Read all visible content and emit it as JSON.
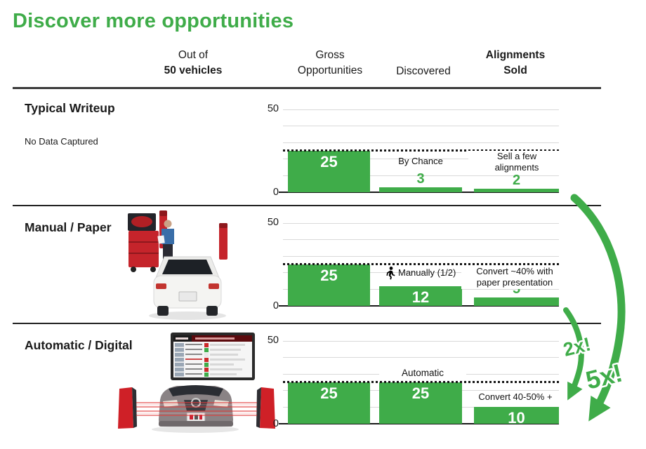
{
  "title": "Discover more opportunities",
  "header": {
    "col1_line1": "Out of",
    "col1_line2": "50 vehicles",
    "col2_line1": "Gross",
    "col2_line2": "Opportunities",
    "col3": "Discovered",
    "col4_line1": "Alignments",
    "col4_line2": "Sold"
  },
  "axis": {
    "top_tick": "50",
    "bottom_tick": "0"
  },
  "rows": [
    {
      "label": "Typical Writeup",
      "note": "No Data Captured",
      "ann2": "By Chance",
      "ann3_line1": "Sell a few",
      "ann3_line2": "alignments"
    },
    {
      "label": "Manual / Paper",
      "ann2": "Manually (1/2)",
      "ann3_line1": "Convert ~40% with",
      "ann3_line2": "paper presentation"
    },
    {
      "label": "Automatic / Digital",
      "ann2": "Automatic",
      "ann3_line1": "Convert 40-50% +",
      "ann3_line2": ""
    }
  ],
  "arrows": {
    "small": "2x!",
    "large": "5x!"
  },
  "colors": {
    "green": "#3fac49",
    "title_green": "#3fae49",
    "grid_gray": "#d9d9d9",
    "text_black": "#1a1a1a",
    "equipment_red": "#c5242b",
    "laser_red": "#e23b3b"
  },
  "chart_data": [
    {
      "type": "bar",
      "title": "Typical Writeup",
      "categories": [
        "Gross Opportunities",
        "Discovered",
        "Alignments Sold"
      ],
      "values": [
        25,
        3,
        2
      ],
      "ylim": [
        0,
        50
      ],
      "yticks": [
        0,
        50
      ],
      "grid": true,
      "reference_line": 25,
      "annotations": [
        "",
        "By Chance",
        "Sell a few alignments"
      ]
    },
    {
      "type": "bar",
      "title": "Manual / Paper",
      "categories": [
        "Gross Opportunities",
        "Discovered",
        "Alignments Sold"
      ],
      "values": [
        25,
        12,
        5
      ],
      "ylim": [
        0,
        50
      ],
      "yticks": [
        0,
        50
      ],
      "grid": true,
      "reference_line": 25,
      "annotations": [
        "",
        "Manually (1/2)",
        "Convert ~40% with paper presentation"
      ]
    },
    {
      "type": "bar",
      "title": "Automatic / Digital",
      "categories": [
        "Gross Opportunities",
        "Discovered",
        "Alignments Sold"
      ],
      "values": [
        25,
        25,
        10
      ],
      "ylim": [
        0,
        50
      ],
      "yticks": [
        0,
        50
      ],
      "grid": true,
      "reference_line": 25,
      "annotations": [
        "",
        "Automatic",
        "Convert 40-50% +"
      ]
    }
  ]
}
